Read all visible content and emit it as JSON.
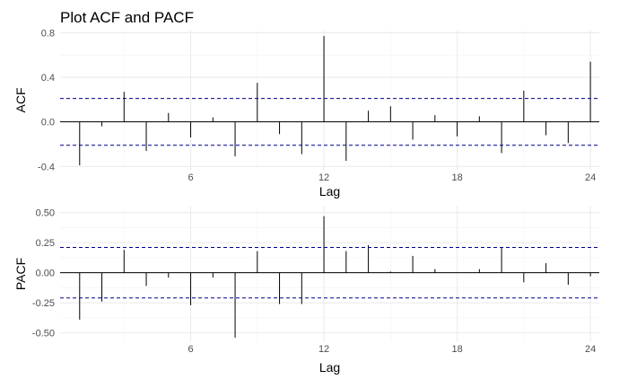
{
  "title": "Plot ACF and PACF",
  "chart_data": [
    {
      "type": "bar",
      "ylabel": "ACF",
      "xlabel": "Lag",
      "x": [
        1,
        2,
        3,
        4,
        5,
        6,
        7,
        8,
        9,
        10,
        11,
        12,
        13,
        14,
        15,
        16,
        17,
        18,
        19,
        20,
        21,
        22,
        23,
        24
      ],
      "values": [
        -0.39,
        -0.04,
        0.27,
        -0.26,
        0.08,
        -0.14,
        0.04,
        -0.31,
        0.35,
        -0.11,
        -0.29,
        0.77,
        -0.35,
        0.1,
        0.14,
        -0.16,
        0.06,
        -0.13,
        0.05,
        -0.28,
        0.28,
        -0.12,
        -0.19,
        0.54
      ],
      "ci": [
        0.21,
        -0.21
      ],
      "xlim": [
        0.12,
        24.4
      ],
      "ylim": [
        -0.43,
        0.82
      ],
      "xticks": [
        6,
        12,
        18,
        24
      ],
      "xtick_labels": [
        "6",
        "12",
        "18",
        "24"
      ],
      "yticks": [
        -0.4,
        0.0,
        0.4,
        0.8
      ],
      "ytick_labels": [
        "-0.4",
        "0.0",
        "0.4",
        "0.8"
      ],
      "grid": true,
      "style": {
        "bar_color": "#000000",
        "ci_color": "#00008b"
      }
    },
    {
      "type": "bar",
      "ylabel": "PACF",
      "xlabel": "Lag",
      "x": [
        1,
        2,
        3,
        4,
        5,
        6,
        7,
        8,
        9,
        10,
        11,
        12,
        13,
        14,
        15,
        16,
        17,
        18,
        19,
        20,
        21,
        22,
        23,
        24
      ],
      "values": [
        -0.39,
        -0.24,
        0.19,
        -0.11,
        -0.04,
        -0.27,
        -0.04,
        -0.54,
        0.18,
        -0.26,
        -0.26,
        0.47,
        0.18,
        0.23,
        0.01,
        0.14,
        0.03,
        0.0,
        0.03,
        0.21,
        -0.08,
        0.08,
        -0.1,
        -0.03
      ],
      "ci": [
        0.21,
        -0.21
      ],
      "xlim": [
        0.12,
        24.4
      ],
      "ylim": [
        -0.57,
        0.55
      ],
      "xticks": [
        6,
        12,
        18,
        24
      ],
      "xtick_labels": [
        "6",
        "12",
        "18",
        "24"
      ],
      "yticks": [
        -0.5,
        -0.25,
        0.0,
        0.25,
        0.5
      ],
      "ytick_labels": [
        "-0.50",
        "-0.25",
        "0.00",
        "0.25",
        "0.50"
      ],
      "grid": true,
      "style": {
        "bar_color": "#000000",
        "ci_color": "#00008b"
      }
    }
  ]
}
